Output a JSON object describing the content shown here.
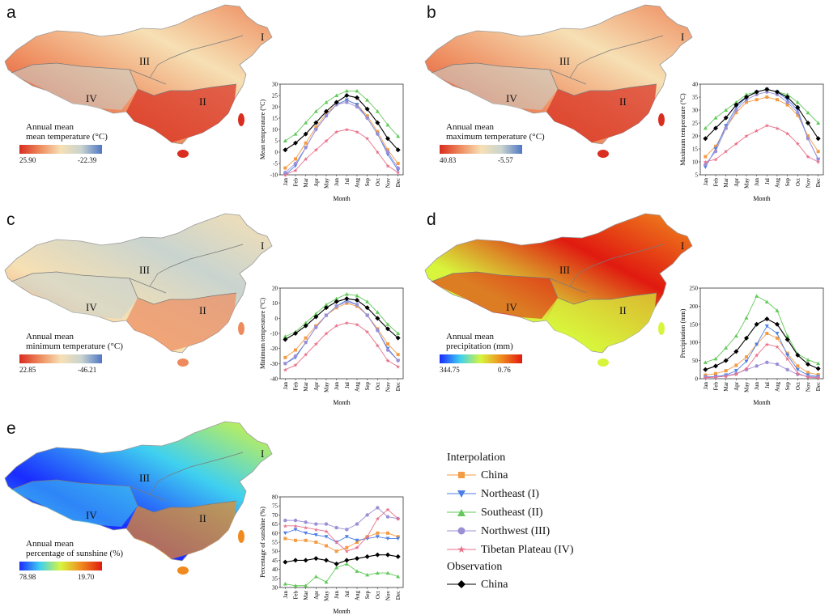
{
  "panels": [
    {
      "id": "a",
      "letter": "a",
      "colorbar": {
        "title": "Annual mean\nmean temperature (°C)",
        "low_label": "25.90",
        "high_label": "-22.39",
        "colors": [
          "#d92d1f",
          "#ee8b5e",
          "#f6e0b4",
          "#c9d4cf",
          "#4f77c4"
        ]
      },
      "region_labels": [
        "I",
        "II",
        "III",
        "IV"
      ],
      "chart_data": {
        "type": "line",
        "categories": [
          "Jan",
          "Feb",
          "Mar",
          "Apr",
          "May",
          "Jun",
          "Jul",
          "Aug",
          "Sep",
          "Oct",
          "Nov",
          "Dec"
        ],
        "xlabel": "Month",
        "ylabel": "Mean temperature (°C)",
        "ylim": [
          -10,
          30
        ],
        "yticks": [
          -10,
          -5,
          0,
          5,
          10,
          15,
          20,
          25,
          30
        ],
        "series": [
          {
            "name": "China",
            "values": [
              -7,
              -3,
              4,
              11,
              17,
              21,
              23,
              21,
              16,
              9,
              1,
              -5
            ]
          },
          {
            "name": "Northeast (I)",
            "values": [
              -10,
              -6,
              2,
              10,
              16,
              21,
              23,
              21,
              15,
              8,
              -1,
              -8
            ]
          },
          {
            "name": "Southeast (II)",
            "values": [
              5,
              8,
              13,
              18,
              22,
              25,
              27,
              27,
              23,
              18,
              12,
              7
            ]
          },
          {
            "name": "Northwest (III)",
            "values": [
              -9,
              -5,
              2,
              10,
              16,
              21,
              22,
              20,
              15,
              8,
              0,
              -7
            ]
          },
          {
            "name": "Tibetan Plateau (IV)",
            "values": [
              -10,
              -8,
              -3,
              1,
              5,
              9,
              10,
              9,
              6,
              0,
              -6,
              -9
            ]
          },
          {
            "name": "China",
            "values": [
              1,
              4,
              8,
              13,
              18,
              22,
              25,
              24,
              19,
              13,
              6,
              1
            ]
          }
        ]
      }
    },
    {
      "id": "b",
      "letter": "b",
      "colorbar": {
        "title": "Annual mean\nmaximum temperature (°C)",
        "low_label": "40.83",
        "high_label": "-5.57",
        "colors": [
          "#d92d1f",
          "#ee8b5e",
          "#f6e0b4",
          "#c9d4cf",
          "#4f77c4"
        ]
      },
      "region_labels": [
        "I",
        "II",
        "III",
        "IV"
      ],
      "chart_data": {
        "type": "line",
        "categories": [
          "Jan",
          "Feb",
          "Mar",
          "Apr",
          "May",
          "Jun",
          "Jul",
          "Aug",
          "Sep",
          "Oct",
          "Nov",
          "Dec"
        ],
        "xlabel": "Month",
        "ylabel": "Maximum temperature (°C)",
        "ylim": [
          5,
          40
        ],
        "yticks": [
          5,
          10,
          15,
          20,
          25,
          30,
          35,
          40
        ],
        "series": [
          {
            "name": "China",
            "values": [
              12,
              16,
              23,
              29,
              33,
              34,
              35,
              34,
              32,
              28,
              20,
              14
            ]
          },
          {
            "name": "Northeast (I)",
            "values": [
              8,
              15,
              24,
              31,
              35,
              37,
              38,
              37,
              34,
              30,
              19,
              11
            ]
          },
          {
            "name": "Southeast (II)",
            "values": [
              23,
              27,
              30,
              33,
              36,
              37,
              38,
              37,
              36,
              33,
              29,
              25
            ]
          },
          {
            "name": "Northwest (III)",
            "values": [
              9,
              14,
              23,
              30,
              34,
              36,
              37,
              36,
              33,
              29,
              19,
              11
            ]
          },
          {
            "name": "Tibetan Plateau (IV)",
            "values": [
              10,
              11,
              14,
              17,
              20,
              22,
              24,
              23,
              21,
              17,
              12,
              10
            ]
          },
          {
            "name": "China",
            "values": [
              19,
              23,
              27,
              32,
              35,
              37,
              38,
              37,
              35,
              31,
              25,
              19
            ]
          }
        ]
      }
    },
    {
      "id": "c",
      "letter": "c",
      "colorbar": {
        "title": "Annual mean\nminimum temperature (°C)",
        "low_label": "22.85",
        "high_label": "-46.21",
        "colors": [
          "#d92d1f",
          "#ee8b5e",
          "#f6e0b4",
          "#c9d4cf",
          "#4f77c4"
        ]
      },
      "region_labels": [
        "I",
        "II",
        "III",
        "IV"
      ],
      "chart_data": {
        "type": "line",
        "categories": [
          "Jan",
          "Feb",
          "Mar",
          "Apr",
          "May",
          "Jun",
          "Jul",
          "Aug",
          "Sep",
          "Oct",
          "Nov",
          "Dec"
        ],
        "xlabel": "Month",
        "ylabel": "Minimum temperature (°C)",
        "ylim": [
          -40,
          20
        ],
        "yticks": [
          -40,
          -30,
          -20,
          -10,
          0,
          10,
          20
        ],
        "series": [
          {
            "name": "China",
            "values": [
              -26,
              -21,
              -13,
              -5,
              2,
              7,
              10,
              8,
              2,
              -7,
              -17,
              -24
            ]
          },
          {
            "name": "Northeast (I)",
            "values": [
              -30,
              -26,
              -16,
              -6,
              2,
              8,
              12,
              9,
              2,
              -8,
              -20,
              -28
            ]
          },
          {
            "name": "Southeast (II)",
            "values": [
              -12,
              -9,
              -3,
              3,
              9,
              13,
              16,
              15,
              11,
              4,
              -4,
              -10
            ]
          },
          {
            "name": "Northwest (III)",
            "values": [
              -30,
              -25,
              -16,
              -6,
              2,
              8,
              11,
              9,
              2,
              -8,
              -21,
              -28
            ]
          },
          {
            "name": "Tibetan Plateau (IV)",
            "values": [
              -34,
              -31,
              -24,
              -17,
              -10,
              -5,
              -3,
              -4,
              -9,
              -18,
              -28,
              -32
            ]
          },
          {
            "name": "China",
            "values": [
              -14,
              -10,
              -5,
              1,
              7,
              11,
              13,
              12,
              7,
              0,
              -7,
              -13
            ]
          }
        ]
      }
    },
    {
      "id": "d",
      "letter": "d",
      "colorbar": {
        "title": "Annual mean\nprecipitation (mm)",
        "low_label": "344.75",
        "high_label": "0.76",
        "colors": [
          "#1a2bff",
          "#3fd0f0",
          "#d8f53c",
          "#f08a1e",
          "#e01a10"
        ]
      },
      "region_labels": [
        "I",
        "II",
        "III",
        "IV"
      ],
      "chart_data": {
        "type": "line",
        "categories": [
          "Jan",
          "Feb",
          "Mar",
          "Apr",
          "May",
          "Jun",
          "Jul",
          "Aug",
          "Sep",
          "Oct",
          "Nov",
          "Dec"
        ],
        "xlabel": "Month",
        "ylabel": "Precipitation (mm)",
        "ylim": [
          0,
          250
        ],
        "yticks": [
          0,
          50,
          100,
          150,
          200,
          250
        ],
        "series": [
          {
            "name": "China",
            "values": [
              10,
              14,
              22,
              37,
              60,
              95,
              125,
              112,
              70,
              35,
              17,
              11
            ]
          },
          {
            "name": "Northeast (I)",
            "values": [
              5,
              6,
              10,
              22,
              48,
              95,
              145,
              125,
              65,
              25,
              10,
              6
            ]
          },
          {
            "name": "Southeast (II)",
            "values": [
              45,
              55,
              85,
              118,
              168,
              228,
              212,
              188,
              118,
              68,
              52,
              42
            ]
          },
          {
            "name": "Northwest (III)",
            "values": [
              4,
              5,
              8,
              14,
              25,
              35,
              45,
              40,
              25,
              12,
              6,
              4
            ]
          },
          {
            "name": "Tibetan Plateau (IV)",
            "values": [
              3,
              4,
              7,
              12,
              28,
              65,
              95,
              88,
              55,
              15,
              4,
              2
            ]
          },
          {
            "name": "China",
            "values": [
              25,
              35,
              50,
              75,
              112,
              150,
              165,
              150,
              108,
              65,
              40,
              28
            ]
          }
        ]
      }
    },
    {
      "id": "e",
      "letter": "e",
      "colorbar": {
        "title": "Annual mean\npercentage of sunshine (%)",
        "low_label": "78.98",
        "high_label": "19.70",
        "colors": [
          "#1a2bff",
          "#3fd0f0",
          "#d8f53c",
          "#f08a1e",
          "#e01a10"
        ]
      },
      "region_labels": [
        "I",
        "II",
        "III",
        "IV"
      ],
      "chart_data": {
        "type": "line",
        "categories": [
          "Jan",
          "Feb",
          "Mar",
          "Apr",
          "May",
          "Jun",
          "Jul",
          "Aug",
          "Sep",
          "Oct",
          "Nov",
          "Dec"
        ],
        "xlabel": "Month",
        "ylabel": "Percentage of sunshine (%)",
        "ylim": [
          30,
          80
        ],
        "yticks": [
          30,
          35,
          40,
          45,
          50,
          55,
          60,
          65,
          70,
          75,
          80
        ],
        "series": [
          {
            "name": "China",
            "values": [
              57,
              56,
              56,
              55,
              53,
              50,
              52,
              55,
              58,
              60,
              60,
              58
            ]
          },
          {
            "name": "Northeast (I)",
            "values": [
              60,
              62,
              60,
              59,
              58,
              55,
              58,
              56,
              57,
              58,
              57,
              57
            ]
          },
          {
            "name": "Southeast (II)",
            "values": [
              32,
              31,
              31,
              36,
              33,
              41,
              43,
              39,
              37,
              38,
              38,
              36
            ]
          },
          {
            "name": "Northwest (III)",
            "values": [
              67,
              67,
              66,
              65,
              65,
              63,
              62,
              65,
              70,
              74,
              69,
              68
            ]
          },
          {
            "name": "Tibetan Plateau (IV)",
            "values": [
              64,
              64,
              63,
              62,
              61,
              55,
              50,
              52,
              58,
              68,
              73,
              68
            ]
          },
          {
            "name": "China",
            "values": [
              44,
              45,
              45,
              46,
              45,
              43,
              45,
              46,
              47,
              48,
              48,
              47
            ]
          }
        ]
      }
    }
  ],
  "legend": {
    "interpolation_title": "Interpolation",
    "observation_title": "Observation",
    "items": [
      {
        "label": "China",
        "color": "#f39c45",
        "marker": "square"
      },
      {
        "label": "Northeast (I)",
        "color": "#4d7fe6",
        "marker": "triangle-down"
      },
      {
        "label": "Southeast (II)",
        "color": "#62c95a",
        "marker": "triangle-up"
      },
      {
        "label": "Northwest (III)",
        "color": "#9b8fd6",
        "marker": "circle"
      },
      {
        "label": "Tibetan Plateau (IV)",
        "color": "#e8718a",
        "marker": "star"
      }
    ],
    "observation": {
      "label": "China",
      "color": "#000000",
      "marker": "diamond"
    }
  }
}
